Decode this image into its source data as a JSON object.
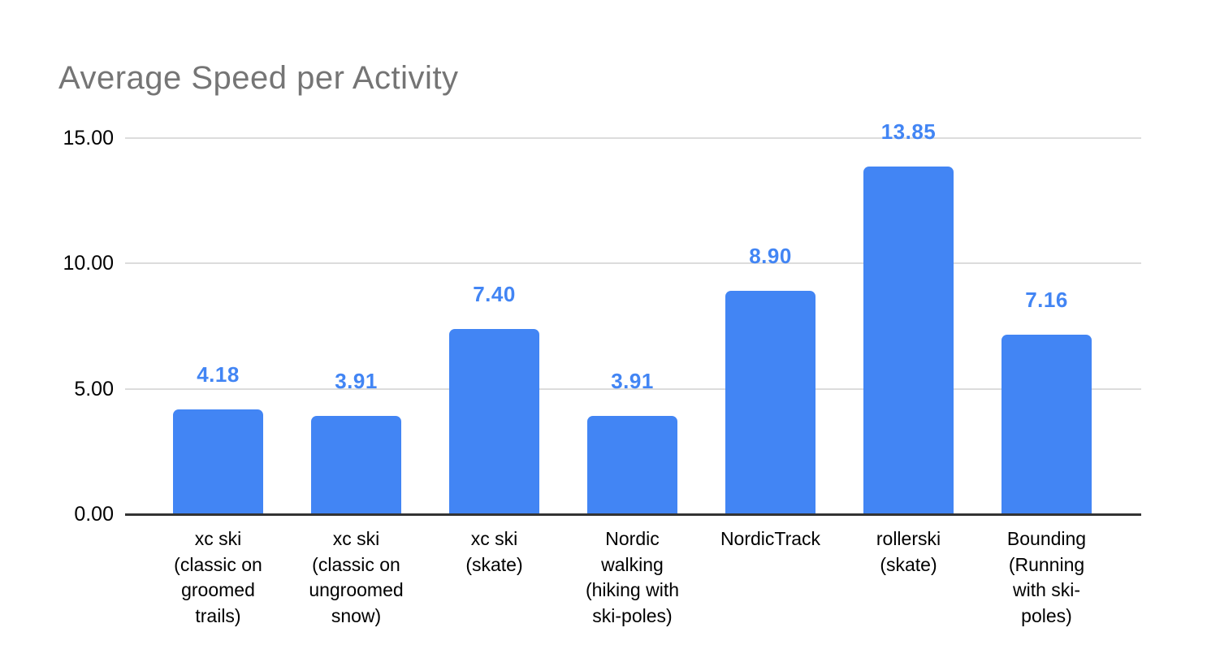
{
  "chart_data": {
    "type": "bar",
    "title": "Average Speed per Activity",
    "categories": [
      "xc ski (classic on groomed trails)",
      "xc ski (classic on ungroomed snow)",
      "xc ski (skate)",
      "Nordic walking (hiking with ski-poles)",
      "NordicTrack",
      "rollerski (skate)",
      "Bounding (Running with ski-poles)"
    ],
    "category_display_lines": [
      "xc ski\n(classic on\ngroomed\ntrails)",
      "xc ski\n(classic on\nungroomed\nsnow)",
      "xc ski\n(skate)",
      "Nordic\nwalking\n(hiking with\nski-poles)",
      "NordicTrack",
      "rollerski\n(skate)",
      "Bounding\n(Running\nwith ski-\npoles)"
    ],
    "values": [
      4.18,
      3.91,
      7.4,
      3.91,
      8.9,
      13.85,
      7.16
    ],
    "data_labels": [
      "4.18",
      "3.91",
      "7.40",
      "3.91",
      "8.90",
      "13.85",
      "7.16"
    ],
    "xlabel": "",
    "ylabel": "",
    "ylim": [
      0,
      15
    ],
    "yticks": [
      {
        "value": 0,
        "label": "0.00"
      },
      {
        "value": 5,
        "label": "5.00"
      },
      {
        "value": 10,
        "label": "10.00"
      },
      {
        "value": 15,
        "label": "15.00"
      }
    ],
    "grid": true,
    "legend": "none",
    "colors": {
      "bar": "#4285F4",
      "data_label": "#4285F4",
      "title": "#757575",
      "gridline": "#dcdcdc",
      "axis_line": "#333333",
      "tick_label": "#000000"
    }
  }
}
